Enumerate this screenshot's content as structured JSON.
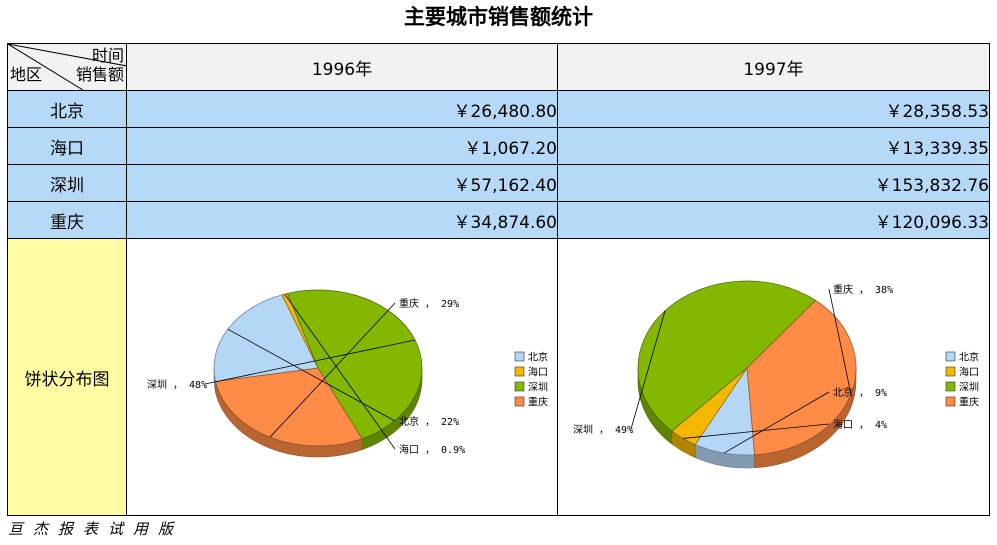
{
  "title": "主要城市销售额统计",
  "corner": {
    "time": "时间",
    "sales": "销售额",
    "region": "地区"
  },
  "years": [
    "1996年",
    "1997年"
  ],
  "rows": [
    {
      "city": "北京",
      "v1996": "￥26,480.80",
      "v1997": "￥28,358.53"
    },
    {
      "city": "海口",
      "v1996": "￥1,067.20",
      "v1997": "￥13,339.35"
    },
    {
      "city": "深圳",
      "v1996": "￥57,162.40",
      "v1997": "￥153,832.76"
    },
    {
      "city": "重庆",
      "v1996": "￥34,874.60",
      "v1997": "￥120,096.33"
    }
  ],
  "pie_row_label": "饼状分布图",
  "footer": "亘杰报表试用版",
  "colors": {
    "北京": "#b4d7f5",
    "海口": "#f5b800",
    "深圳": "#84b800",
    "重庆": "#ff8c46"
  },
  "chart_data": [
    {
      "type": "pie",
      "title": "",
      "categories": [
        "北京",
        "海口",
        "深圳",
        "重庆"
      ],
      "values": [
        26480.8,
        1067.2,
        57162.4,
        34874.6
      ],
      "labels": [
        "北京 ， 22%",
        "海口 ， 0.9%",
        "深圳 ， 48%",
        "重庆 ， 29%"
      ],
      "legend": "right"
    },
    {
      "type": "pie",
      "title": "",
      "categories": [
        "北京",
        "海口",
        "深圳",
        "重庆"
      ],
      "values": [
        28358.53,
        13339.35,
        153832.76,
        120096.33
      ],
      "labels": [
        "北京 ， 9%",
        "海口 ， 4%",
        "深圳 ， 49%",
        "重庆 ， 38%"
      ],
      "legend": "right"
    }
  ]
}
